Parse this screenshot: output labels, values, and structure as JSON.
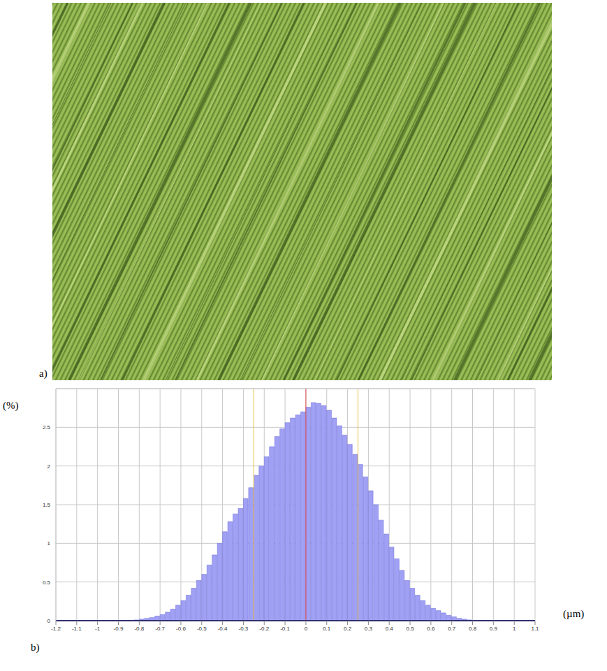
{
  "panel_labels": [
    "a)",
    "b)"
  ],
  "chart_data": {
    "type": "histogram",
    "y_label": "(%)",
    "x_label": "(µm)",
    "color": "#a0a0f4",
    "grid": true,
    "xlim": [
      -1.2,
      1.1
    ],
    "ylim": [
      0,
      3
    ],
    "xticks": [
      -1.2,
      -1.1,
      -1,
      -0.9,
      -0.8,
      -0.7,
      -0.6,
      -0.5,
      -0.4,
      -0.3,
      -0.2,
      -0.1,
      0,
      0.1,
      0.2,
      0.3,
      0.4,
      0.5,
      0.6,
      0.7,
      0.8,
      0.9,
      1,
      1.1
    ],
    "yticks": [
      0,
      0.5,
      1,
      1.5,
      2,
      2.5
    ],
    "bins": [
      -0.825,
      -0.8,
      -0.775,
      -0.75,
      -0.725,
      -0.7,
      -0.675,
      -0.65,
      -0.625,
      -0.6,
      -0.575,
      -0.55,
      -0.525,
      -0.5,
      -0.475,
      -0.45,
      -0.425,
      -0.4,
      -0.375,
      -0.35,
      -0.325,
      -0.3,
      -0.275,
      -0.25,
      -0.225,
      -0.2,
      -0.175,
      -0.15,
      -0.125,
      -0.1,
      -0.075,
      -0.05,
      -0.025,
      0,
      0.025,
      0.05,
      0.075,
      0.1,
      0.125,
      0.15,
      0.175,
      0.2,
      0.225,
      0.25,
      0.275,
      0.3,
      0.325,
      0.35,
      0.375,
      0.4,
      0.425,
      0.45,
      0.475,
      0.5,
      0.525,
      0.55,
      0.575,
      0.6,
      0.625,
      0.65,
      0.675,
      0.7,
      0.725,
      0.75,
      0.775,
      0.8
    ],
    "counts": [
      0.01,
      0.02,
      0.03,
      0.04,
      0.06,
      0.08,
      0.11,
      0.15,
      0.2,
      0.26,
      0.33,
      0.42,
      0.52,
      0.6,
      0.72,
      0.85,
      1.0,
      1.15,
      1.28,
      1.38,
      1.45,
      1.58,
      1.72,
      1.88,
      2.0,
      2.12,
      2.25,
      2.38,
      2.48,
      2.56,
      2.62,
      2.66,
      2.7,
      2.76,
      2.82,
      2.81,
      2.78,
      2.72,
      2.62,
      2.52,
      2.4,
      2.28,
      2.15,
      2.02,
      1.86,
      1.68,
      1.5,
      1.3,
      1.12,
      0.95,
      0.8,
      0.65,
      0.52,
      0.42,
      0.33,
      0.26,
      0.2,
      0.16,
      0.13,
      0.1,
      0.07,
      0.05,
      0.03,
      0.02,
      0.01
    ],
    "reference_lines": [
      {
        "value": 0,
        "color": "#e05050"
      },
      {
        "value": -0.25,
        "color": "#e8c040"
      },
      {
        "value": 0.25,
        "color": "#e8c040"
      }
    ]
  }
}
